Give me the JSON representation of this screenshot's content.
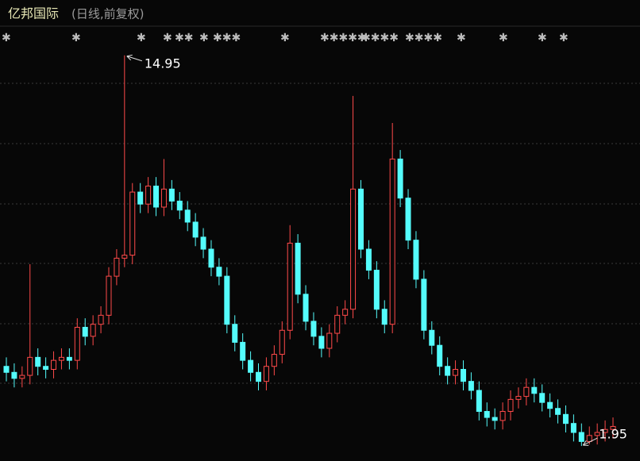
{
  "chart_data": {
    "type": "candlestick",
    "title": "亿邦国际",
    "subtitle": "(日线,前复权)",
    "open": [
      4.6,
      4.4,
      4.2,
      4.3,
      4.9,
      4.6,
      4.5,
      4.8,
      4.9,
      4.8,
      5.9,
      5.6,
      6.0,
      6.3,
      7.6,
      8.2,
      8.3,
      10.4,
      10.0,
      10.6,
      9.9,
      10.5,
      10.1,
      9.8,
      9.4,
      8.9,
      8.5,
      7.9,
      7.6,
      6.0,
      5.4,
      4.8,
      4.4,
      4.1,
      4.6,
      5.0,
      5.8,
      8.7,
      7.0,
      6.1,
      5.6,
      5.2,
      5.7,
      6.3,
      6.5,
      10.5,
      8.5,
      7.8,
      6.5,
      6.0,
      11.5,
      10.2,
      8.8,
      7.5,
      5.8,
      5.3,
      4.6,
      4.3,
      4.5,
      4.1,
      3.8,
      3.1,
      2.9,
      2.8,
      3.1,
      3.5,
      3.6,
      3.9,
      3.7,
      3.4,
      3.2,
      3.0,
      2.7,
      2.4,
      2.1,
      2.3,
      2.4,
      2.5
    ],
    "close": [
      4.4,
      4.2,
      4.3,
      4.9,
      4.6,
      4.5,
      4.8,
      4.9,
      4.8,
      5.9,
      5.6,
      6.0,
      6.3,
      7.6,
      8.2,
      8.3,
      10.4,
      10.0,
      10.6,
      9.9,
      10.5,
      10.1,
      9.8,
      9.4,
      8.9,
      8.5,
      7.9,
      7.6,
      6.0,
      5.4,
      4.8,
      4.4,
      4.1,
      4.6,
      5.0,
      5.8,
      8.7,
      7.0,
      6.1,
      5.6,
      5.2,
      5.7,
      6.3,
      6.5,
      10.5,
      8.5,
      7.8,
      6.5,
      6.0,
      11.5,
      10.2,
      8.8,
      7.5,
      5.8,
      5.3,
      4.6,
      4.3,
      4.5,
      4.1,
      3.8,
      3.1,
      2.9,
      2.8,
      3.1,
      3.5,
      3.6,
      3.9,
      3.7,
      3.4,
      3.2,
      3.0,
      2.7,
      2.4,
      2.1,
      2.3,
      2.4,
      2.5,
      2.6
    ],
    "high": [
      4.9,
      4.7,
      4.6,
      8.0,
      5.2,
      4.9,
      5.1,
      5.2,
      5.2,
      6.2,
      6.2,
      6.3,
      6.6,
      7.9,
      8.5,
      14.95,
      10.7,
      10.7,
      10.9,
      10.9,
      11.5,
      10.8,
      10.4,
      10.1,
      9.7,
      9.2,
      8.8,
      8.2,
      7.9,
      6.3,
      5.7,
      5.1,
      4.7,
      4.9,
      5.3,
      6.1,
      9.3,
      9.0,
      7.3,
      6.4,
      5.9,
      6.0,
      6.6,
      6.8,
      13.6,
      10.8,
      8.8,
      8.1,
      6.8,
      12.7,
      11.8,
      10.5,
      9.1,
      7.8,
      6.1,
      5.6,
      4.9,
      4.8,
      4.8,
      4.4,
      4.1,
      3.4,
      3.2,
      3.4,
      3.8,
      3.9,
      4.2,
      4.2,
      4.0,
      3.7,
      3.5,
      3.3,
      3.0,
      2.7,
      2.6,
      2.7,
      2.8,
      2.9
    ],
    "low": [
      4.1,
      3.9,
      3.9,
      4.0,
      4.3,
      4.2,
      4.2,
      4.5,
      4.5,
      4.5,
      5.3,
      5.3,
      5.7,
      6.0,
      7.3,
      7.9,
      8.0,
      9.7,
      9.7,
      9.6,
      9.6,
      9.8,
      9.5,
      9.1,
      8.6,
      8.2,
      7.6,
      7.3,
      5.7,
      5.1,
      4.5,
      4.1,
      3.8,
      3.8,
      4.3,
      4.7,
      5.5,
      6.7,
      5.8,
      5.3,
      4.9,
      4.9,
      5.4,
      6.0,
      6.2,
      8.2,
      7.5,
      6.2,
      5.7,
      5.7,
      9.9,
      8.5,
      7.2,
      5.5,
      5.0,
      4.3,
      4.0,
      4.0,
      3.8,
      3.5,
      2.8,
      2.6,
      2.5,
      2.5,
      2.8,
      3.2,
      3.3,
      3.4,
      3.1,
      2.9,
      2.7,
      2.4,
      2.1,
      1.95,
      2.0,
      2.0,
      2.1,
      2.2
    ],
    "colors": {
      "up": "#ff4a4a",
      "down": "#54fcfc"
    },
    "ylim": [
      1.45,
      16.0
    ]
  }
}
